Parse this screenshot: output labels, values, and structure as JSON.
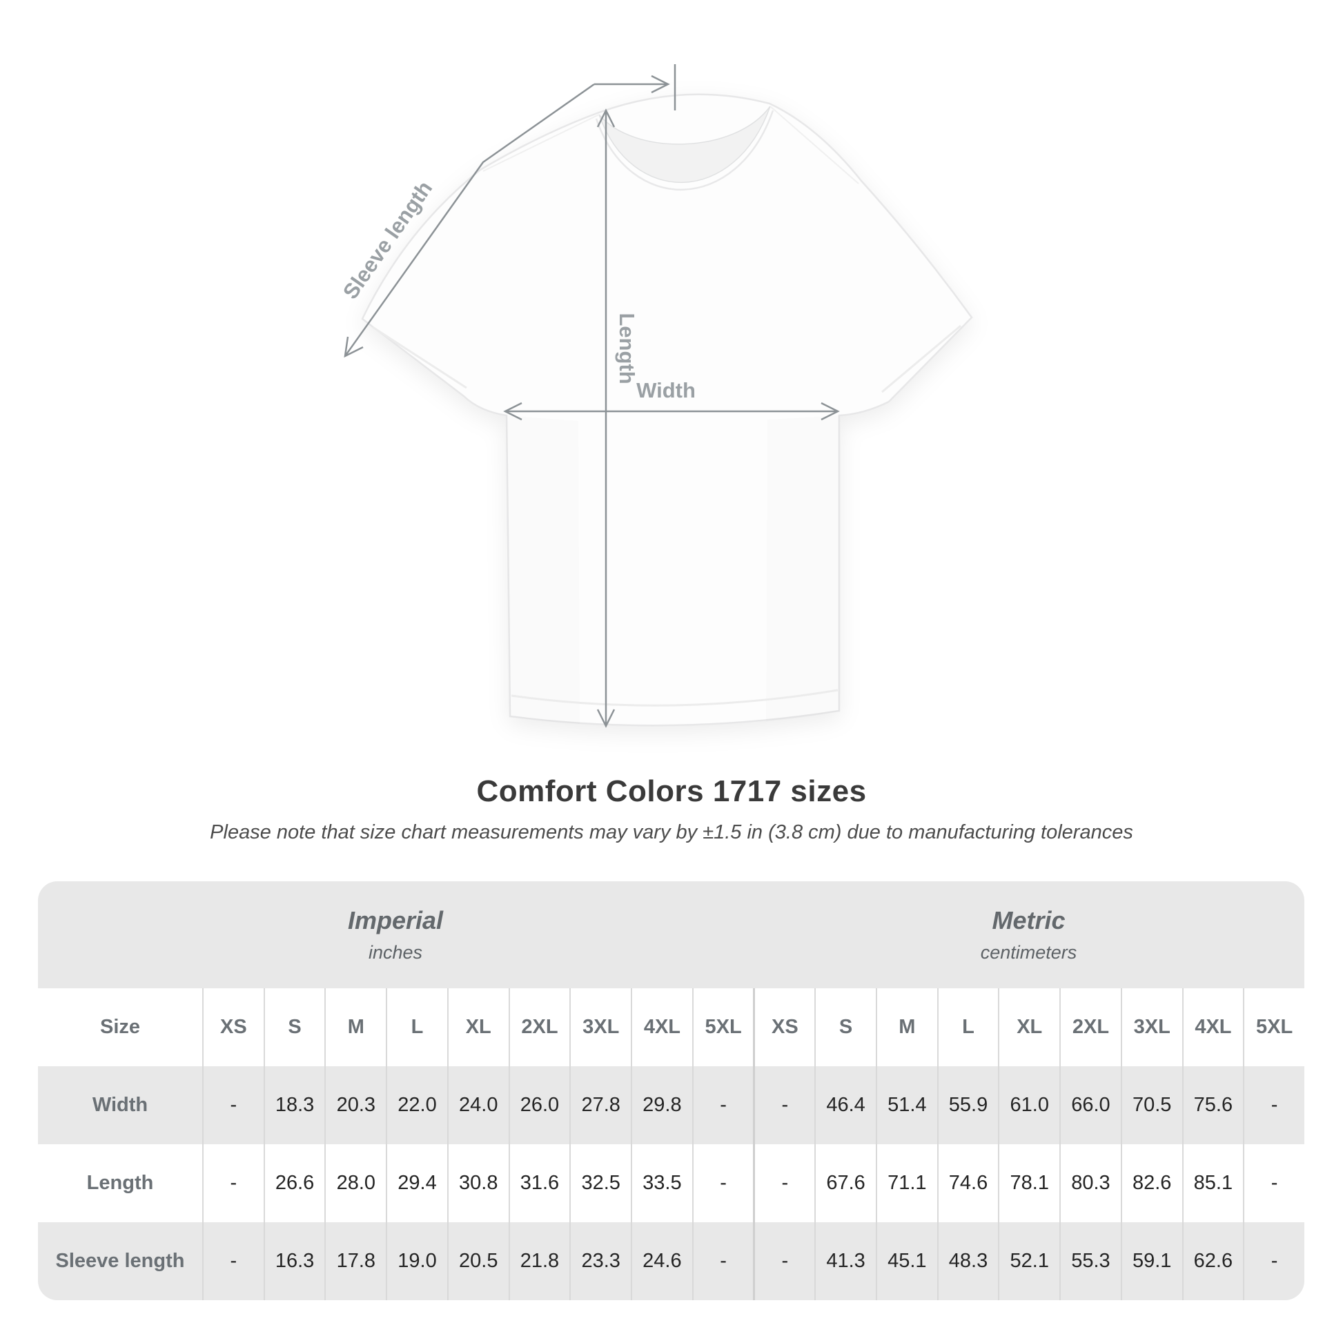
{
  "heading": {
    "title": "Comfort Colors 1717 sizes",
    "subtitle": "Please note that size chart measurements may vary by ±1.5 in (3.8 cm) due to manufacturing tolerances"
  },
  "diagram": {
    "sleeve_length_label": "Sleeve length",
    "length_label": "Length",
    "width_label": "Width",
    "arrow_color": "#8c9296",
    "label_color": "#9aa0a4",
    "shirt_color": "#fdfdfd"
  },
  "chart_data": {
    "type": "table",
    "title": "Comfort Colors 1717 sizes",
    "subtitle": "Please note that size chart measurements may vary by ±1.5 in (3.8 cm) due to manufacturing tolerances",
    "groups": [
      {
        "name": "Imperial",
        "unit": "inches"
      },
      {
        "name": "Metric",
        "unit": "centimeters"
      }
    ],
    "size_header_label": "Size",
    "sizes": [
      "XS",
      "S",
      "M",
      "L",
      "XL",
      "2XL",
      "3XL",
      "4XL",
      "5XL"
    ],
    "measurements": [
      {
        "label": "Width",
        "imperial": [
          "-",
          "18.3",
          "20.3",
          "22.0",
          "24.0",
          "26.0",
          "27.8",
          "29.8",
          "-"
        ],
        "metric": [
          "-",
          "46.4",
          "51.4",
          "55.9",
          "61.0",
          "66.0",
          "70.5",
          "75.6",
          "-"
        ]
      },
      {
        "label": "Length",
        "imperial": [
          "-",
          "26.6",
          "28.0",
          "29.4",
          "30.8",
          "31.6",
          "32.5",
          "33.5",
          "-"
        ],
        "metric": [
          "-",
          "67.6",
          "71.1",
          "74.6",
          "78.1",
          "80.3",
          "82.6",
          "85.1",
          "-"
        ]
      },
      {
        "label": "Sleeve length",
        "imperial": [
          "-",
          "16.3",
          "17.8",
          "19.0",
          "20.5",
          "21.8",
          "23.3",
          "24.6",
          "-"
        ],
        "metric": [
          "-",
          "41.3",
          "45.1",
          "48.3",
          "52.1",
          "55.3",
          "59.1",
          "62.6",
          "-"
        ]
      }
    ],
    "colors": {
      "table_background": "#e8e8e8",
      "alt_row_background": "#ffffff",
      "header_text": "#6a7075",
      "value_text": "#242424",
      "divider": "#d9d9d9"
    }
  }
}
